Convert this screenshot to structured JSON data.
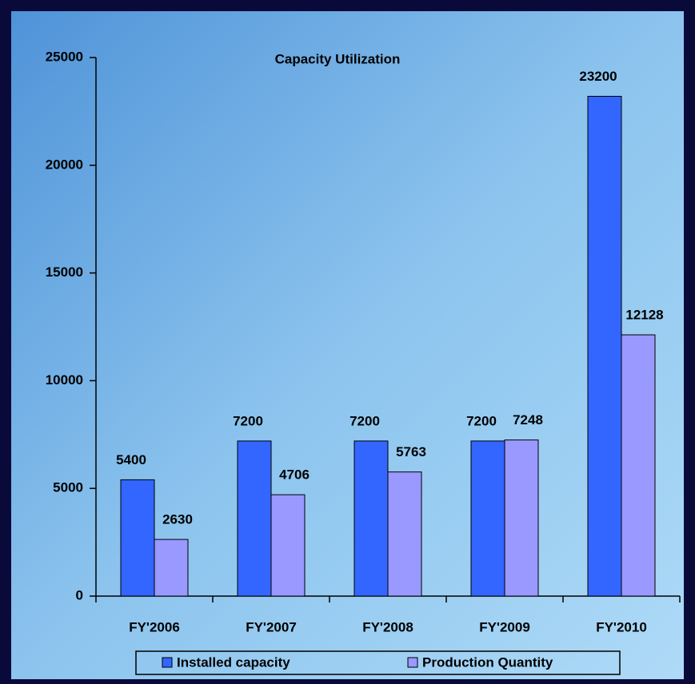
{
  "chart_data": {
    "type": "bar",
    "title": "Capacity Utilization",
    "categories": [
      "FY'2006",
      "FY'2007",
      "FY'2008",
      "FY'2009",
      "FY'2010"
    ],
    "series": [
      {
        "name": "Installed capacity",
        "color": "#3366ff",
        "values": [
          5400,
          7200,
          7200,
          7200,
          23200
        ]
      },
      {
        "name": "Production Quantity",
        "color": "#9999ff",
        "values": [
          2630,
          4706,
          5763,
          7248,
          12128
        ]
      }
    ],
    "ylim": [
      0,
      25000
    ],
    "yticks": [
      0,
      5000,
      10000,
      15000,
      20000,
      25000
    ],
    "grid": false,
    "legend": "bottom"
  }
}
